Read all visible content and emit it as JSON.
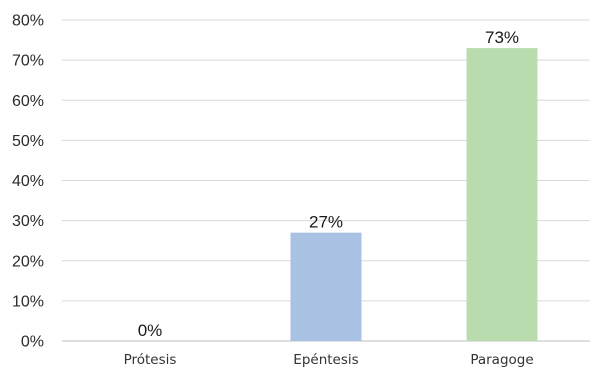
{
  "chart_data": {
    "type": "bar",
    "title": "",
    "xlabel": "",
    "ylabel": "",
    "categories": [
      "Prótesis",
      "Epéntesis",
      "Paragoge"
    ],
    "values": [
      0,
      27,
      73
    ],
    "data_labels": [
      "0%",
      "27%",
      "73%"
    ],
    "bar_colors": [
      "#a9c1e3",
      "#a9c1e3",
      "#b9dcae"
    ],
    "ylim": [
      0,
      80
    ],
    "y_ticks": [
      0,
      10,
      20,
      30,
      40,
      50,
      60,
      70,
      80
    ],
    "y_tick_labels": [
      "0%",
      "10%",
      "20%",
      "30%",
      "40%",
      "50%",
      "60%",
      "70%",
      "80%"
    ],
    "grid": true,
    "legend": "none"
  },
  "colors": {
    "gridline": "#d9d9d9",
    "axis": "#bfbfbf"
  }
}
